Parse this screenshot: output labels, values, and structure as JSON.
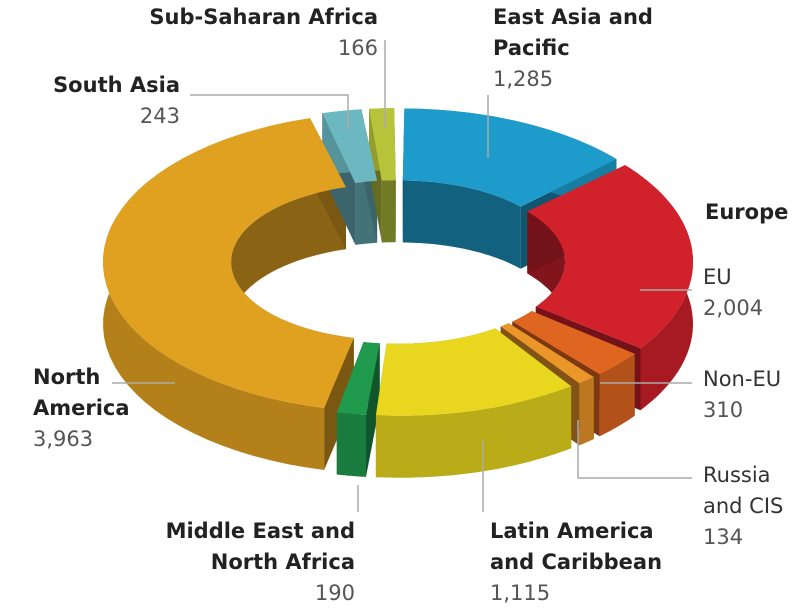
{
  "chart_data": {
    "type": "pie",
    "donut": true,
    "annotation": "Europe",
    "categories": [
      "East Asia and Pacific",
      "EU",
      "Non-EU",
      "Russia and CIS",
      "Latin America and Caribbean",
      "Middle East and North Africa",
      "North America",
      "South Asia",
      "Sub-Saharan Africa"
    ],
    "values": [
      1285,
      2004,
      310,
      134,
      1115,
      190,
      3963,
      243,
      166
    ],
    "value_labels": [
      "1,285",
      "2,004",
      "310",
      "134",
      "1,115",
      "190",
      "3,963",
      "243",
      "166"
    ],
    "colors": [
      "#1d9ccb",
      "#d1212b",
      "#df6620",
      "#eb9628",
      "#e9d61f",
      "#1f9a4c",
      "#e0a020",
      "#6cb8c0",
      "#b7c43a"
    ]
  }
}
